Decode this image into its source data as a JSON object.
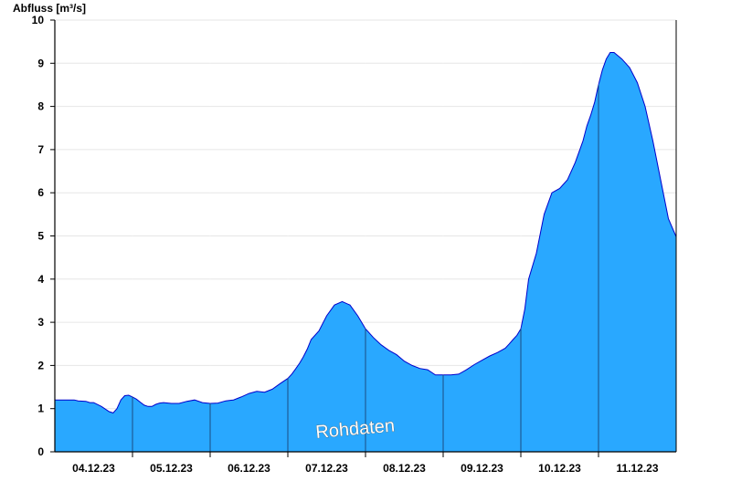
{
  "chart_data": {
    "type": "area",
    "ylabel": "Abfluss [m³/s]",
    "ylim": [
      0,
      10
    ],
    "yticks": [
      "0",
      "1",
      "2",
      "3",
      "4",
      "5",
      "6",
      "7",
      "8",
      "9",
      "10"
    ],
    "xlim": [
      0,
      8
    ],
    "x_tick_labels": [
      "04.12.23",
      "05.12.23",
      "06.12.23",
      "07.12.23",
      "08.12.23",
      "09.12.23",
      "10.12.23",
      "11.12.23"
    ],
    "grid": true,
    "fill_color": "#29A8FF",
    "line_color": "#0000CC",
    "watermark": "Rohdaten",
    "series": [
      {
        "x": [
          0,
          0.1,
          0.2,
          0.25,
          0.3,
          0.4,
          0.45,
          0.5,
          0.6,
          0.7,
          0.75,
          0.8,
          0.85,
          0.9,
          0.95,
          1.0,
          1.05,
          1.1,
          1.15,
          1.2,
          1.25,
          1.3,
          1.35,
          1.4,
          1.5,
          1.6,
          1.7,
          1.8,
          1.9,
          2.0,
          2.1,
          2.2,
          2.3,
          2.4,
          2.5,
          2.6,
          2.7,
          2.8,
          2.9,
          3.0,
          3.05,
          3.1,
          3.15,
          3.2,
          3.25,
          3.3,
          3.4,
          3.5,
          3.6,
          3.7,
          3.8,
          3.9,
          4.0,
          4.1,
          4.2,
          4.3,
          4.4,
          4.5,
          4.6,
          4.7,
          4.8,
          4.9,
          5.0,
          5.1,
          5.2,
          5.3,
          5.4,
          5.5,
          5.6,
          5.7,
          5.75,
          5.8,
          5.85,
          5.9,
          5.95,
          6.0,
          6.05,
          6.1,
          6.2,
          6.3,
          6.4,
          6.5,
          6.6,
          6.7,
          6.8,
          6.85,
          6.9,
          6.95,
          7.0,
          7.05,
          7.1,
          7.15,
          7.2,
          7.3,
          7.4,
          7.5,
          7.6,
          7.7,
          7.8,
          7.9,
          8.0
        ],
        "y": [
          1.2,
          1.2,
          1.2,
          1.2,
          1.18,
          1.17,
          1.14,
          1.14,
          1.05,
          0.93,
          0.9,
          1.0,
          1.2,
          1.3,
          1.31,
          1.27,
          1.22,
          1.15,
          1.08,
          1.05,
          1.05,
          1.1,
          1.13,
          1.14,
          1.12,
          1.12,
          1.17,
          1.2,
          1.14,
          1.12,
          1.13,
          1.18,
          1.2,
          1.27,
          1.35,
          1.4,
          1.38,
          1.45,
          1.58,
          1.7,
          1.8,
          1.92,
          2.05,
          2.2,
          2.38,
          2.6,
          2.8,
          3.15,
          3.4,
          3.48,
          3.4,
          3.15,
          2.85,
          2.65,
          2.48,
          2.35,
          2.25,
          2.1,
          2.0,
          1.93,
          1.9,
          1.78,
          1.78,
          1.78,
          1.8,
          1.9,
          2.02,
          2.12,
          2.22,
          2.3,
          2.35,
          2.4,
          2.5,
          2.6,
          2.7,
          2.85,
          3.3,
          4.0,
          4.6,
          5.5,
          6.0,
          6.1,
          6.3,
          6.7,
          7.2,
          7.55,
          7.8,
          8.1,
          8.5,
          8.85,
          9.1,
          9.25,
          9.25,
          9.1,
          8.9,
          8.55,
          8.0,
          7.2,
          6.3,
          5.4,
          4.98
        ]
      }
    ]
  }
}
